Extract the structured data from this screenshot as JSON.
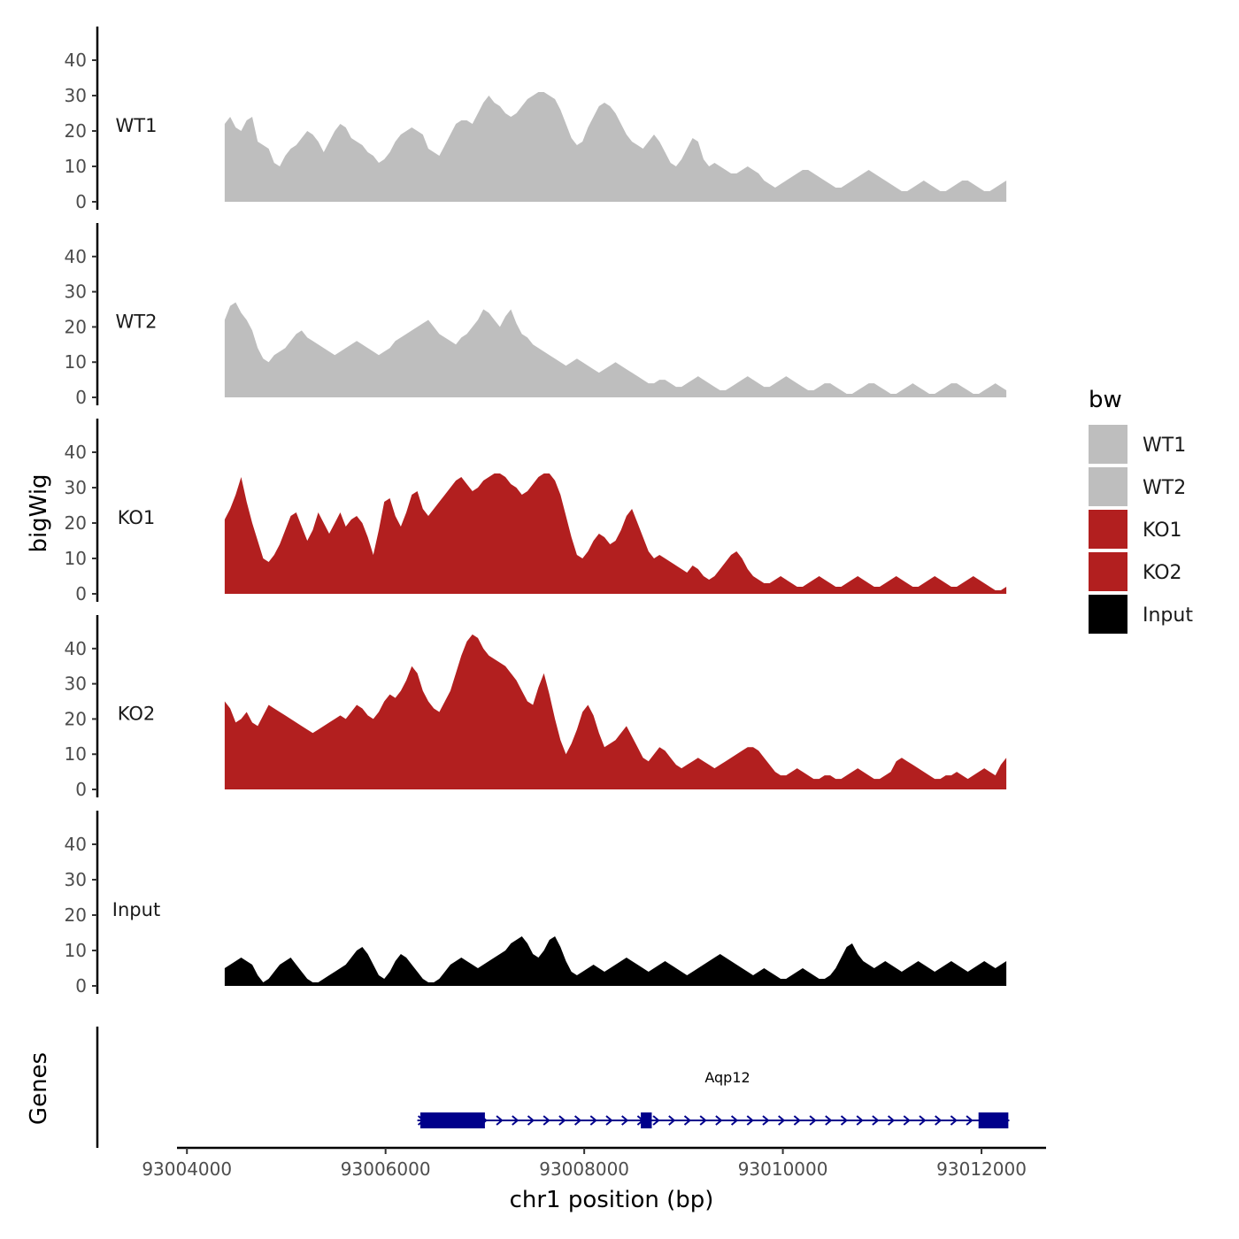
{
  "chart_data": {
    "type": "area",
    "description_x_unit": "bp",
    "xlabel": "chr1 position (bp)",
    "ylabel": "bigWig",
    "genes_label": "Genes",
    "xlim": [
      93003900,
      93012650
    ],
    "x_ticks": [
      93004000,
      93006000,
      93008000,
      93010000,
      93012000
    ],
    "x_tick_labels": [
      "93004000",
      "93006000",
      "93008000",
      "93010000",
      "93012000"
    ],
    "ylim": [
      0,
      47
    ],
    "y_ticks": [
      0,
      10,
      20,
      30,
      40
    ],
    "y_tick_labels": [
      "0",
      "10",
      "20",
      "30",
      "40"
    ],
    "x_start": 93004380,
    "x_end": 93012250,
    "legend": {
      "title": "bw",
      "entries": [
        {
          "name": "WT1",
          "color": "#bebebe"
        },
        {
          "name": "WT2",
          "color": "#bebebe"
        },
        {
          "name": "KO1",
          "color": "#b21f1f"
        },
        {
          "name": "KO2",
          "color": "#b21f1f"
        },
        {
          "name": "Input",
          "color": "#000000"
        }
      ]
    },
    "series": [
      {
        "name": "WT1",
        "color": "#bebebe",
        "values": [
          22,
          24,
          21,
          20,
          23,
          24,
          17,
          16,
          15,
          11,
          10,
          13,
          15,
          16,
          18,
          20,
          19,
          17,
          14,
          17,
          20,
          22,
          21,
          18,
          17,
          16,
          14,
          13,
          11,
          12,
          14,
          17,
          19,
          20,
          21,
          20,
          19,
          15,
          14,
          13,
          16,
          19,
          22,
          23,
          23,
          22,
          25,
          28,
          30,
          28,
          27,
          25,
          24,
          25,
          27,
          29,
          30,
          31,
          31,
          30,
          29,
          26,
          22,
          18,
          16,
          17,
          21,
          24,
          27,
          28,
          27,
          25,
          22,
          19,
          17,
          16,
          15,
          17,
          19,
          17,
          14,
          11,
          10,
          12,
          15,
          18,
          17,
          12,
          10,
          11,
          10,
          9,
          8,
          8,
          9,
          10,
          9,
          8,
          6,
          5,
          4,
          5,
          6,
          7,
          8,
          9,
          9,
          8,
          7,
          6,
          5,
          4,
          4,
          5,
          6,
          7,
          8,
          9,
          8,
          7,
          6,
          5,
          4,
          3,
          3,
          4,
          5,
          6,
          5,
          4,
          3,
          3,
          4,
          5,
          6,
          6,
          5,
          4,
          3,
          3,
          4,
          5,
          6
        ]
      },
      {
        "name": "WT2",
        "color": "#bebebe",
        "values": [
          22,
          26,
          27,
          24,
          22,
          19,
          14,
          11,
          10,
          12,
          13,
          14,
          16,
          18,
          19,
          17,
          16,
          15,
          14,
          13,
          12,
          13,
          14,
          15,
          16,
          15,
          14,
          13,
          12,
          13,
          14,
          16,
          17,
          18,
          19,
          20,
          21,
          22,
          20,
          18,
          17,
          16,
          15,
          17,
          18,
          20,
          22,
          25,
          24,
          22,
          20,
          23,
          25,
          21,
          18,
          17,
          15,
          14,
          13,
          12,
          11,
          10,
          9,
          10,
          11,
          10,
          9,
          8,
          7,
          8,
          9,
          10,
          9,
          8,
          7,
          6,
          5,
          4,
          4,
          5,
          5,
          4,
          3,
          3,
          4,
          5,
          6,
          5,
          4,
          3,
          2,
          2,
          3,
          4,
          5,
          6,
          5,
          4,
          3,
          3,
          4,
          5,
          6,
          5,
          4,
          3,
          2,
          2,
          3,
          4,
          4,
          3,
          2,
          1,
          1,
          2,
          3,
          4,
          4,
          3,
          2,
          1,
          1,
          2,
          3,
          4,
          3,
          2,
          1,
          1,
          2,
          3,
          4,
          4,
          3,
          2,
          1,
          1,
          2,
          3,
          4,
          3,
          2
        ]
      },
      {
        "name": "KO1",
        "color": "#b21f1f",
        "values": [
          21,
          24,
          28,
          33,
          26,
          20,
          15,
          10,
          9,
          11,
          14,
          18,
          22,
          23,
          19,
          15,
          18,
          23,
          20,
          17,
          20,
          23,
          19,
          21,
          22,
          20,
          16,
          11,
          18,
          26,
          27,
          22,
          19,
          23,
          28,
          29,
          24,
          22,
          24,
          26,
          28,
          30,
          32,
          33,
          31,
          29,
          30,
          32,
          33,
          34,
          34,
          33,
          31,
          30,
          28,
          29,
          31,
          33,
          34,
          34,
          32,
          28,
          22,
          16,
          11,
          10,
          12,
          15,
          17,
          16,
          14,
          15,
          18,
          22,
          24,
          20,
          16,
          12,
          10,
          11,
          10,
          9,
          8,
          7,
          6,
          8,
          7,
          5,
          4,
          5,
          7,
          9,
          11,
          12,
          10,
          7,
          5,
          4,
          3,
          3,
          4,
          5,
          4,
          3,
          2,
          2,
          3,
          4,
          5,
          4,
          3,
          2,
          2,
          3,
          4,
          5,
          4,
          3,
          2,
          2,
          3,
          4,
          5,
          4,
          3,
          2,
          2,
          3,
          4,
          5,
          4,
          3,
          2,
          2,
          3,
          4,
          5,
          4,
          3,
          2,
          1,
          1,
          2
        ]
      },
      {
        "name": "KO2",
        "color": "#b21f1f",
        "values": [
          25,
          23,
          19,
          20,
          22,
          19,
          18,
          21,
          24,
          23,
          22,
          21,
          20,
          19,
          18,
          17,
          16,
          17,
          18,
          19,
          20,
          21,
          20,
          22,
          24,
          23,
          21,
          20,
          22,
          25,
          27,
          26,
          28,
          31,
          35,
          33,
          28,
          25,
          23,
          22,
          25,
          28,
          33,
          38,
          42,
          44,
          43,
          40,
          38,
          37,
          36,
          35,
          33,
          31,
          28,
          25,
          24,
          29,
          33,
          27,
          20,
          14,
          10,
          13,
          17,
          22,
          24,
          21,
          16,
          12,
          13,
          14,
          16,
          18,
          15,
          12,
          9,
          8,
          10,
          12,
          11,
          9,
          7,
          6,
          7,
          8,
          9,
          8,
          7,
          6,
          7,
          8,
          9,
          10,
          11,
          12,
          12,
          11,
          9,
          7,
          5,
          4,
          4,
          5,
          6,
          5,
          4,
          3,
          3,
          4,
          4,
          3,
          3,
          4,
          5,
          6,
          5,
          4,
          3,
          3,
          4,
          5,
          8,
          9,
          8,
          7,
          6,
          5,
          4,
          3,
          3,
          4,
          4,
          5,
          4,
          3,
          4,
          5,
          6,
          5,
          4,
          7,
          9
        ]
      },
      {
        "name": "Input",
        "color": "#000000",
        "values": [
          5,
          6,
          7,
          8,
          7,
          6,
          3,
          1,
          2,
          4,
          6,
          7,
          8,
          6,
          4,
          2,
          1,
          1,
          2,
          3,
          4,
          5,
          6,
          8,
          10,
          11,
          9,
          6,
          3,
          2,
          4,
          7,
          9,
          8,
          6,
          4,
          2,
          1,
          1,
          2,
          4,
          6,
          7,
          8,
          7,
          6,
          5,
          6,
          7,
          8,
          9,
          10,
          12,
          13,
          14,
          12,
          9,
          8,
          10,
          13,
          14,
          11,
          7,
          4,
          3,
          4,
          5,
          6,
          5,
          4,
          5,
          6,
          7,
          8,
          7,
          6,
          5,
          4,
          5,
          6,
          7,
          6,
          5,
          4,
          3,
          4,
          5,
          6,
          7,
          8,
          9,
          8,
          7,
          6,
          5,
          4,
          3,
          4,
          5,
          4,
          3,
          2,
          2,
          3,
          4,
          5,
          4,
          3,
          2,
          2,
          3,
          5,
          8,
          11,
          12,
          9,
          7,
          6,
          5,
          6,
          7,
          6,
          5,
          4,
          5,
          6,
          7,
          6,
          5,
          4,
          5,
          6,
          7,
          6,
          5,
          4,
          5,
          6,
          7,
          6,
          5,
          6,
          7
        ]
      }
    ],
    "gene": {
      "name": "Aqp12",
      "color": "#00008b",
      "start": 93006320,
      "end": 93012280,
      "strand": "+",
      "exons": [
        [
          93006350,
          93007000
        ],
        [
          93008570,
          93008680
        ],
        [
          93011970,
          93012270
        ]
      ]
    }
  }
}
